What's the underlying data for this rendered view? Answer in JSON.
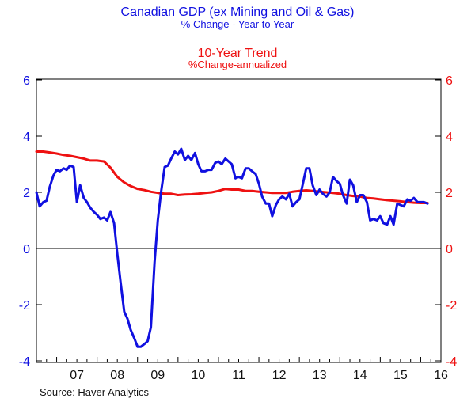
{
  "chart_data": {
    "type": "line",
    "title": "Canadian GDP (ex Mining and Oil & Gas)",
    "subtitle": "% Change - Year to Year",
    "title2": "10-Year Trend",
    "subtitle2": "%Change-annualized",
    "source": "Source:   Haver Analytics",
    "colors": {
      "gdp": "#1010e0",
      "trend": "#ee1111",
      "axis": "#000000"
    },
    "x_range": [
      2006.5,
      2016.5
    ],
    "ylim_left": [
      -4,
      6
    ],
    "ylim_right": [
      -4,
      6
    ],
    "yticks_left": [
      "6",
      "4",
      "2",
      "0",
      "-2",
      "-4"
    ],
    "yticks_right": [
      "6",
      "4",
      "2",
      "0",
      "-2",
      "-4"
    ],
    "xtick_labels": [
      {
        "label": "07",
        "pos": 2007.0
      },
      {
        "label": "08",
        "pos": 2008.0
      },
      {
        "label": "09",
        "pos": 2009.0
      },
      {
        "label": "10",
        "pos": 2010.0
      },
      {
        "label": "11",
        "pos": 2011.0
      },
      {
        "label": "12",
        "pos": 2012.0
      },
      {
        "label": "13",
        "pos": 2013.0
      },
      {
        "label": "14",
        "pos": 2014.0
      },
      {
        "label": "15",
        "pos": 2015.0
      },
      {
        "label": "16",
        "pos": 2016.0
      }
    ],
    "series": [
      {
        "key": "gdp",
        "x": [
          2006.5,
          2006.58,
          2006.67,
          2006.75,
          2006.83,
          2006.92,
          2007.0,
          2007.08,
          2007.17,
          2007.25,
          2007.33,
          2007.42,
          2007.5,
          2007.58,
          2007.67,
          2007.75,
          2007.83,
          2007.92,
          2008.0,
          2008.08,
          2008.17,
          2008.25,
          2008.33,
          2008.42,
          2008.5,
          2008.58,
          2008.67,
          2008.75,
          2008.83,
          2008.92,
          2009.0,
          2009.08,
          2009.17,
          2009.25,
          2009.33,
          2009.42,
          2009.5,
          2009.58,
          2009.67,
          2009.75,
          2009.83,
          2009.92,
          2010.0,
          2010.08,
          2010.17,
          2010.25,
          2010.33,
          2010.42,
          2010.5,
          2010.58,
          2010.67,
          2010.75,
          2010.83,
          2010.92,
          2011.0,
          2011.08,
          2011.17,
          2011.25,
          2011.33,
          2011.42,
          2011.5,
          2011.58,
          2011.67,
          2011.75,
          2011.83,
          2011.92,
          2012.0,
          2012.08,
          2012.17,
          2012.25,
          2012.33,
          2012.42,
          2012.5,
          2012.58,
          2012.67,
          2012.75,
          2012.83,
          2012.92,
          2013.0,
          2013.08,
          2013.17,
          2013.25,
          2013.33,
          2013.42,
          2013.5,
          2013.58,
          2013.67,
          2013.75,
          2013.83,
          2013.92,
          2014.0,
          2014.08,
          2014.17,
          2014.25,
          2014.33,
          2014.42,
          2014.5,
          2014.58,
          2014.67,
          2014.75,
          2014.83,
          2014.92,
          2015.0,
          2015.08,
          2015.17,
          2015.25,
          2015.33,
          2015.42,
          2015.5,
          2015.58,
          2015.67,
          2015.75,
          2015.83,
          2015.92,
          2016.0,
          2016.08,
          2016.17
        ],
        "y": [
          2.0,
          1.5,
          1.65,
          1.7,
          2.2,
          2.6,
          2.8,
          2.75,
          2.85,
          2.8,
          2.95,
          2.9,
          1.65,
          2.25,
          1.8,
          1.65,
          1.45,
          1.3,
          1.2,
          1.05,
          1.1,
          1.0,
          1.3,
          0.9,
          -0.2,
          -1.2,
          -2.25,
          -2.5,
          -2.9,
          -3.2,
          -3.5,
          -3.5,
          -3.4,
          -3.3,
          -2.8,
          -0.5,
          1.0,
          2.0,
          2.9,
          2.95,
          3.2,
          3.45,
          3.35,
          3.55,
          3.15,
          3.3,
          3.15,
          3.4,
          3.0,
          2.75,
          2.75,
          2.8,
          2.8,
          3.05,
          3.1,
          3.0,
          3.2,
          3.1,
          3.0,
          2.5,
          2.55,
          2.5,
          2.85,
          2.85,
          2.75,
          2.65,
          2.3,
          1.85,
          1.6,
          1.6,
          1.15,
          1.55,
          1.75,
          1.85,
          1.75,
          1.95,
          1.5,
          1.65,
          1.75,
          2.25,
          2.85,
          2.85,
          2.25,
          1.9,
          2.1,
          1.95,
          1.85,
          2.0,
          2.55,
          2.4,
          2.3,
          1.9,
          1.6,
          2.45,
          2.25,
          1.65,
          1.9,
          1.9,
          1.65,
          1.0,
          1.05,
          1.0,
          1.15,
          0.9,
          0.85,
          1.15,
          0.85,
          1.6,
          1.55,
          1.5,
          1.75,
          1.7,
          1.8,
          1.65,
          1.65,
          1.65,
          1.6
        ]
      },
      {
        "key": "trend",
        "x": [
          2006.5,
          2006.67,
          2006.83,
          2007.0,
          2007.17,
          2007.33,
          2007.5,
          2007.67,
          2007.83,
          2008.0,
          2008.17,
          2008.33,
          2008.5,
          2008.67,
          2008.83,
          2009.0,
          2009.17,
          2009.33,
          2009.5,
          2009.67,
          2009.83,
          2010.0,
          2010.17,
          2010.33,
          2010.5,
          2010.67,
          2010.83,
          2011.0,
          2011.17,
          2011.33,
          2011.5,
          2011.67,
          2011.83,
          2012.0,
          2012.17,
          2012.33,
          2012.5,
          2012.67,
          2012.83,
          2013.0,
          2013.17,
          2013.33,
          2013.5,
          2013.67,
          2013.83,
          2014.0,
          2014.17,
          2014.33,
          2014.5,
          2014.67,
          2014.83,
          2015.0,
          2015.17,
          2015.33,
          2015.5,
          2015.67,
          2015.83,
          2016.0,
          2016.17
        ],
        "y": [
          3.45,
          3.45,
          3.42,
          3.38,
          3.33,
          3.3,
          3.25,
          3.2,
          3.13,
          3.13,
          3.1,
          2.88,
          2.55,
          2.35,
          2.22,
          2.12,
          2.08,
          2.02,
          1.98,
          1.95,
          1.95,
          1.9,
          1.92,
          1.93,
          1.95,
          1.98,
          2.0,
          2.05,
          2.12,
          2.1,
          2.1,
          2.05,
          2.05,
          2.02,
          2.0,
          1.98,
          1.98,
          1.98,
          2.02,
          2.05,
          2.07,
          2.05,
          2.02,
          2.0,
          1.98,
          1.95,
          1.9,
          1.87,
          1.85,
          1.8,
          1.78,
          1.75,
          1.72,
          1.7,
          1.68,
          1.65,
          1.63,
          1.62,
          1.62
        ]
      }
    ]
  }
}
